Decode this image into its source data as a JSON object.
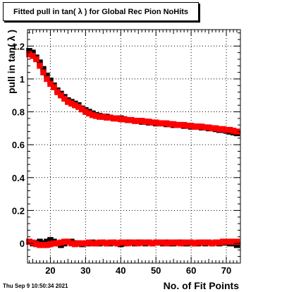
{
  "chart_data": {
    "type": "scatter",
    "title": "Fitted pull in tan( λ ) for Global Rec Pion NoHits",
    "xlabel": "No. of Fit Points",
    "ylabel": "pull in tan( λ )",
    "xlim": [
      13.5,
      74
    ],
    "ylim": [
      -0.12,
      1.3
    ],
    "xticks": [
      20,
      30,
      40,
      50,
      60,
      70
    ],
    "yticks": [
      0,
      0.2,
      0.4,
      0.6,
      0.8,
      1,
      1.2
    ],
    "xtick_labels": [
      "20",
      "30",
      "40",
      "50",
      "60",
      "70"
    ],
    "ytick_labels": [
      "0",
      "0.2",
      "0.4",
      "0.6",
      "0.8",
      "1",
      "1.2"
    ],
    "grid": true,
    "colors": {
      "black": "#000000",
      "red": "#ff0000"
    },
    "series": [
      {
        "color": "#000000",
        "x": [
          14,
          15,
          16,
          17,
          18,
          19,
          20,
          21,
          22,
          23,
          24,
          25,
          26,
          27,
          28,
          29,
          30,
          31,
          32,
          33,
          34,
          35,
          36,
          37,
          38,
          39,
          40,
          41,
          42,
          43,
          44,
          45,
          46,
          47,
          48,
          49,
          50,
          51,
          52,
          53,
          54,
          55,
          56,
          57,
          58,
          59,
          60,
          61,
          62,
          63,
          64,
          65,
          66,
          67,
          68,
          69,
          70,
          71,
          72,
          73
        ],
        "y": [
          1.17,
          1.16,
          1.13,
          1.1,
          1.06,
          1.02,
          0.99,
          0.96,
          0.93,
          0.91,
          0.89,
          0.87,
          0.86,
          0.85,
          0.84,
          0.82,
          0.81,
          0.8,
          0.79,
          0.78,
          0.775,
          0.77,
          0.77,
          0.765,
          0.76,
          0.76,
          0.76,
          0.755,
          0.75,
          0.75,
          0.745,
          0.745,
          0.74,
          0.74,
          0.735,
          0.735,
          0.73,
          0.73,
          0.73,
          0.725,
          0.725,
          0.72,
          0.72,
          0.72,
          0.715,
          0.715,
          0.71,
          0.71,
          0.71,
          0.705,
          0.705,
          0.7,
          0.7,
          0.695,
          0.69,
          0.69,
          0.685,
          0.68,
          0.675,
          0.67
        ]
      },
      {
        "color": "#ff0000",
        "x": [
          14,
          15,
          16,
          17,
          18,
          19,
          20,
          21,
          22,
          23,
          24,
          25,
          26,
          27,
          28,
          29,
          30,
          31,
          32,
          33,
          34,
          35,
          36,
          37,
          38,
          39,
          40,
          41,
          42,
          43,
          44,
          45,
          46,
          47,
          48,
          49,
          50,
          51,
          52,
          53,
          54,
          55,
          56,
          57,
          58,
          59,
          60,
          61,
          62,
          63,
          64,
          65,
          66,
          67,
          68,
          69,
          70,
          71,
          72,
          73
        ],
        "y": [
          1.15,
          1.14,
          1.12,
          1.08,
          1.04,
          1.0,
          0.97,
          0.95,
          0.92,
          0.9,
          0.88,
          0.86,
          0.85,
          0.84,
          0.83,
          0.815,
          0.8,
          0.79,
          0.78,
          0.775,
          0.77,
          0.77,
          0.765,
          0.765,
          0.76,
          0.76,
          0.755,
          0.755,
          0.75,
          0.75,
          0.745,
          0.745,
          0.745,
          0.74,
          0.74,
          0.735,
          0.735,
          0.73,
          0.73,
          0.73,
          0.725,
          0.725,
          0.72,
          0.72,
          0.72,
          0.715,
          0.715,
          0.71,
          0.71,
          0.71,
          0.705,
          0.705,
          0.7,
          0.7,
          0.695,
          0.695,
          0.69,
          0.69,
          0.685,
          0.68
        ]
      },
      {
        "color": "#000000",
        "x": [
          14,
          15,
          16,
          17,
          18,
          19,
          20,
          21,
          22,
          23,
          24,
          25,
          26,
          27,
          28,
          29,
          30,
          31,
          32,
          33,
          34,
          35,
          36,
          37,
          38,
          39,
          40,
          41,
          42,
          43,
          44,
          45,
          46,
          47,
          48,
          49,
          50,
          51,
          52,
          53,
          54,
          55,
          56,
          57,
          58,
          59,
          60,
          61,
          62,
          63,
          64,
          65,
          66,
          67,
          68,
          69,
          70,
          71,
          72,
          73
        ],
        "y": [
          0.01,
          0.0,
          0.0,
          0.01,
          0.0,
          0.01,
          0.02,
          0.01,
          0.0,
          -0.01,
          0.0,
          0.01,
          0.01,
          0.0,
          0.0,
          -0.005,
          0.0,
          0.0,
          0.005,
          0.0,
          0.0,
          0.005,
          0.0,
          0.0,
          0.005,
          0.0,
          -0.005,
          0.0,
          0.005,
          0.005,
          0.0,
          0.005,
          0.005,
          0.0,
          0.005,
          0.0,
          0.005,
          0.005,
          0.0,
          0.005,
          0.0,
          0.0,
          0.005,
          0.005,
          0.0,
          0.0,
          0.005,
          0.0,
          0.0,
          0.005,
          0.0,
          0.005,
          0.0,
          0.005,
          0.0,
          0.005,
          0.005,
          0.0,
          0.0,
          -0.01
        ]
      },
      {
        "color": "#ff0000",
        "x": [
          14,
          15,
          16,
          17,
          18,
          19,
          20,
          21,
          22,
          23,
          24,
          25,
          26,
          27,
          28,
          29,
          30,
          31,
          32,
          33,
          34,
          35,
          36,
          37,
          38,
          39,
          40,
          41,
          42,
          43,
          44,
          45,
          46,
          47,
          48,
          49,
          50,
          51,
          52,
          53,
          54,
          55,
          56,
          57,
          58,
          59,
          60,
          61,
          62,
          63,
          64,
          65,
          66,
          67,
          68,
          69,
          70,
          71,
          72,
          73
        ],
        "y": [
          0.01,
          0.005,
          -0.005,
          -0.01,
          -0.01,
          -0.01,
          -0.005,
          0.0,
          0.0,
          0.005,
          0.01,
          0.01,
          0.0,
          -0.005,
          0.0,
          0.0,
          0.0,
          0.005,
          0.0,
          0.0,
          0.005,
          0.005,
          0.0,
          0.005,
          0.005,
          0.0,
          0.005,
          0.005,
          0.0,
          0.005,
          0.005,
          0.0,
          0.005,
          0.005,
          0.005,
          0.0,
          0.005,
          0.005,
          0.005,
          0.0,
          0.005,
          0.005,
          0.005,
          0.0,
          0.005,
          0.005,
          0.005,
          0.0,
          0.005,
          0.005,
          0.005,
          0.005,
          0.0,
          0.005,
          0.005,
          0.01,
          0.01,
          0.01,
          0.01,
          0.01
        ]
      }
    ]
  },
  "footer": {
    "timestamp": "Thu Sep  9 10:50:34 2021"
  }
}
